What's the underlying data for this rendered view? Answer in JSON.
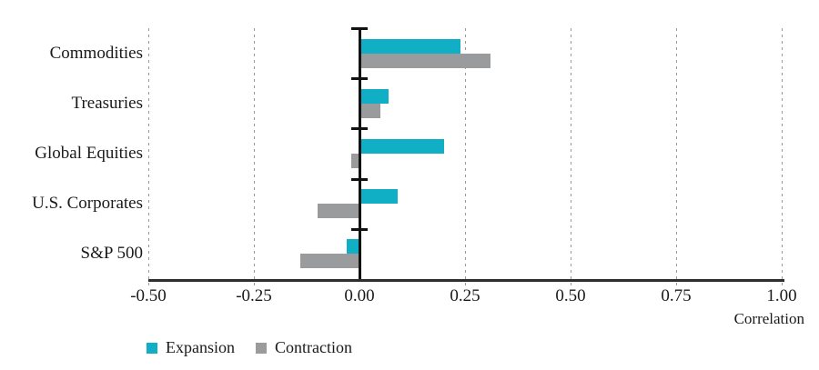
{
  "chart_data": {
    "type": "bar",
    "orientation": "horizontal",
    "title": "",
    "categories": [
      "Commodities",
      "Treasuries",
      "Global Equities",
      "U.S. Corporates",
      "S&P 500"
    ],
    "series": [
      {
        "name": "Expansion",
        "color": "#10afc6",
        "values": [
          0.24,
          0.07,
          0.2,
          0.09,
          -0.03
        ]
      },
      {
        "name": "Contraction",
        "color": "#999b9d",
        "values": [
          0.31,
          0.05,
          -0.02,
          -0.1,
          -0.14
        ]
      }
    ],
    "xlabel": "Correlation",
    "xlim": [
      -0.5,
      1.0
    ],
    "xticks": [
      -0.5,
      -0.25,
      0,
      0.25,
      0.5,
      0.75,
      1.0
    ],
    "xtick_labels": [
      "-0.50",
      "-0.25",
      "0.00",
      "0.25",
      "0.50",
      "0.75",
      "1.00"
    ],
    "grid": "vertical dashed at ticks, solid black line at zero",
    "legend_position": "bottom-left",
    "colors": {
      "expansion": "#10afc6",
      "contraction": "#999b9d",
      "axis": "#2e2e2e",
      "zero_line": "#111111",
      "gridline": "#9a9a9a",
      "text": "#1a1a1a"
    }
  }
}
